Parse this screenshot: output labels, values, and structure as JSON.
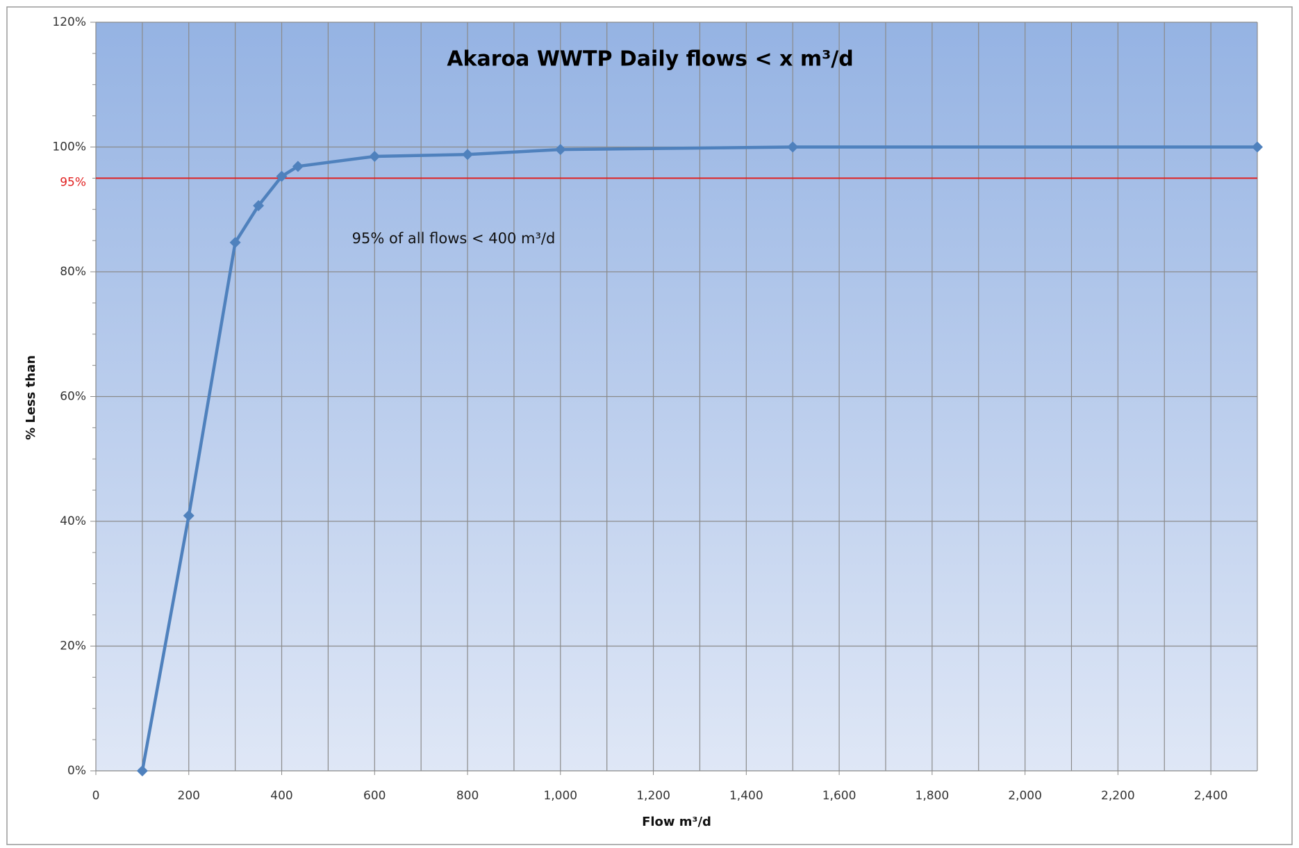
{
  "chart_data": {
    "type": "line",
    "title": "Akaroa WWTP Daily flows < x m³/d",
    "x_label": "Flow m³/d",
    "y_label": "% Less than",
    "annotation": "95% of all flows < 400 m³/d",
    "series": [
      {
        "name": "% Less than",
        "color": "#4f81bd",
        "x": [
          100,
          200,
          300,
          350,
          400,
          435,
          600,
          800,
          1000,
          1500,
          2500
        ],
        "values": [
          0,
          40.9,
          84.7,
          90.6,
          95.3,
          96.9,
          98.5,
          98.8,
          99.6,
          100,
          100
        ]
      }
    ],
    "reference_line": {
      "value": 95,
      "label": "95%",
      "color": "#e02020"
    },
    "xlim": [
      0,
      2500
    ],
    "xticks": [
      0,
      200,
      400,
      600,
      800,
      {
        "value": 1000,
        "label": "1,000"
      },
      {
        "value": 1200,
        "label": "1,200"
      },
      {
        "value": 1400,
        "label": "1,400"
      },
      {
        "value": 1600,
        "label": "1,600"
      },
      {
        "value": 1800,
        "label": "1,800"
      },
      {
        "value": 2000,
        "label": "2,000"
      },
      {
        "value": 2200,
        "label": "2,200"
      },
      {
        "value": 2400,
        "label": "2,400"
      }
    ],
    "x_minor_ticks": [
      100,
      300,
      500,
      700,
      900,
      1100,
      1300,
      1500,
      1700,
      1900,
      2100,
      2300,
      2500
    ],
    "ylim": [
      0,
      120
    ],
    "yticks": [
      {
        "value": 0,
        "label": "0%"
      },
      {
        "value": 20,
        "label": "20%"
      },
      {
        "value": 40,
        "label": "40%"
      },
      {
        "value": 60,
        "label": "60%"
      },
      {
        "value": 80,
        "label": "80%"
      },
      {
        "value": 100,
        "label": "100%"
      },
      {
        "value": 120,
        "label": "120%"
      }
    ],
    "y_minor_ticks": [
      5,
      10,
      15,
      25,
      30,
      35,
      45,
      50,
      55,
      65,
      70,
      75,
      85,
      90,
      95,
      105,
      110,
      115
    ],
    "grid": true
  }
}
